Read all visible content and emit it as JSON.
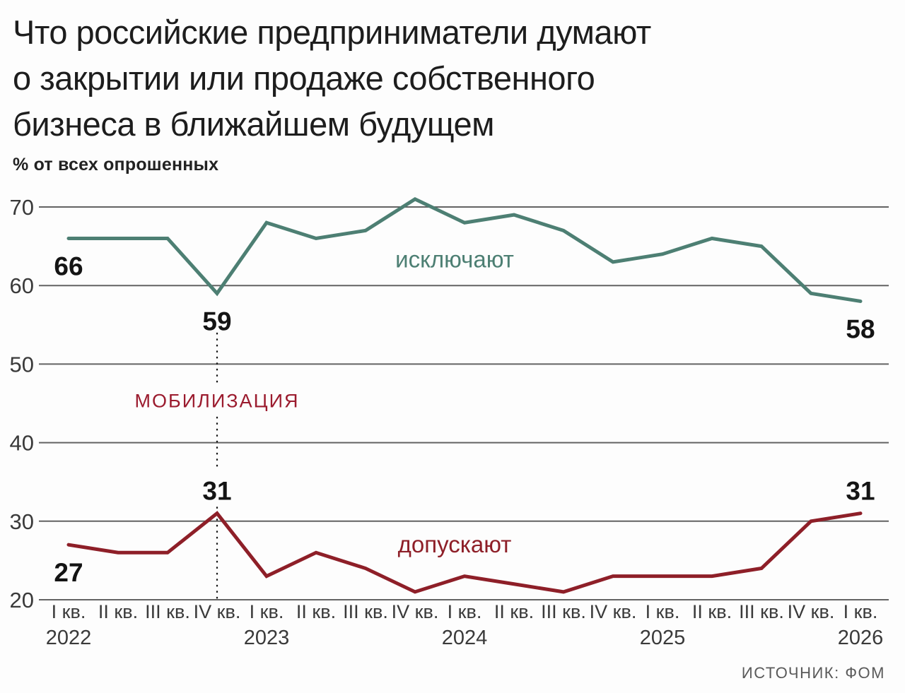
{
  "header": {
    "title_lines": [
      "Что российские предприниматели думают",
      "о закрытии или продаже собственного",
      "бизнеса в ближайшем будущем"
    ],
    "subtitle": "% от всех опрошенных"
  },
  "source": "ИСТОЧНИК: ФОМ",
  "colors": {
    "background": "#fdfdfd",
    "grid": "#636363",
    "axis_text": "#3a3a3a",
    "value_label": "#141414",
    "dotted_line": "#1a1a1a",
    "exclude_series": "#4d7f73",
    "allow_series": "#8e1f28",
    "event_label": "#9b1b2e"
  },
  "chart_data": {
    "type": "line",
    "title": "Что российские предприниматели думают о закрытии или продаже собственного бизнеса в ближайшем будущем",
    "ylabel": "% от всех опрошенных",
    "grid": true,
    "legend_position": "inline",
    "ylim": [
      20,
      73
    ],
    "yticks": [
      20,
      30,
      40,
      50,
      60,
      70
    ],
    "x_tick_labels": [
      "I кв.",
      "II кв.",
      "III кв.",
      "IV кв.",
      "I кв.",
      "II кв.",
      "III кв.",
      "IV кв.",
      "I кв.",
      "II кв.",
      "III кв.",
      "IV кв.",
      "I кв.",
      "II кв.",
      "III кв.",
      "IV кв.",
      "I кв."
    ],
    "year_labels": [
      {
        "label": "2022",
        "tick_index": 0
      },
      {
        "label": "2023",
        "tick_index": 4
      },
      {
        "label": "2024",
        "tick_index": 8
      },
      {
        "label": "2025",
        "tick_index": 12
      },
      {
        "label": "2026",
        "tick_index": 16
      }
    ],
    "series": [
      {
        "name": "исключают",
        "color": "#4d7f73",
        "values": [
          66,
          66,
          66,
          59,
          68,
          66,
          67,
          71,
          68,
          69,
          67,
          63,
          64,
          66,
          65,
          59,
          58
        ]
      },
      {
        "name": "допускают",
        "color": "#8e1f28",
        "values": [
          27,
          26,
          26,
          31,
          23,
          26,
          24,
          21,
          23,
          22,
          21,
          23,
          23,
          23,
          24,
          30,
          31
        ]
      }
    ],
    "series_labels": [
      {
        "text": "исключают",
        "color": "#4d7f73",
        "x_index": 7.8,
        "y_value": 63.3
      },
      {
        "text": "допускают",
        "color": "#8e1f28",
        "x_index": 7.8,
        "y_value": 27.0
      }
    ],
    "point_labels": [
      {
        "series": 0,
        "index": 0,
        "text": "66",
        "placement": "below"
      },
      {
        "series": 0,
        "index": 3,
        "text": "59",
        "placement": "below"
      },
      {
        "series": 0,
        "index": 16,
        "text": "58",
        "placement": "below"
      },
      {
        "series": 1,
        "index": 0,
        "text": "27",
        "placement": "below"
      },
      {
        "series": 1,
        "index": 3,
        "text": "31",
        "placement": "above"
      },
      {
        "series": 1,
        "index": 16,
        "text": "31",
        "placement": "above"
      }
    ],
    "event_annotation": {
      "text": "МОБИЛИЗАЦИЯ",
      "color": "#9b1b2e",
      "x_index": 3,
      "label_y_value": 45.3,
      "line_top_value": 54.0,
      "line_bottom_value": 20
    }
  }
}
